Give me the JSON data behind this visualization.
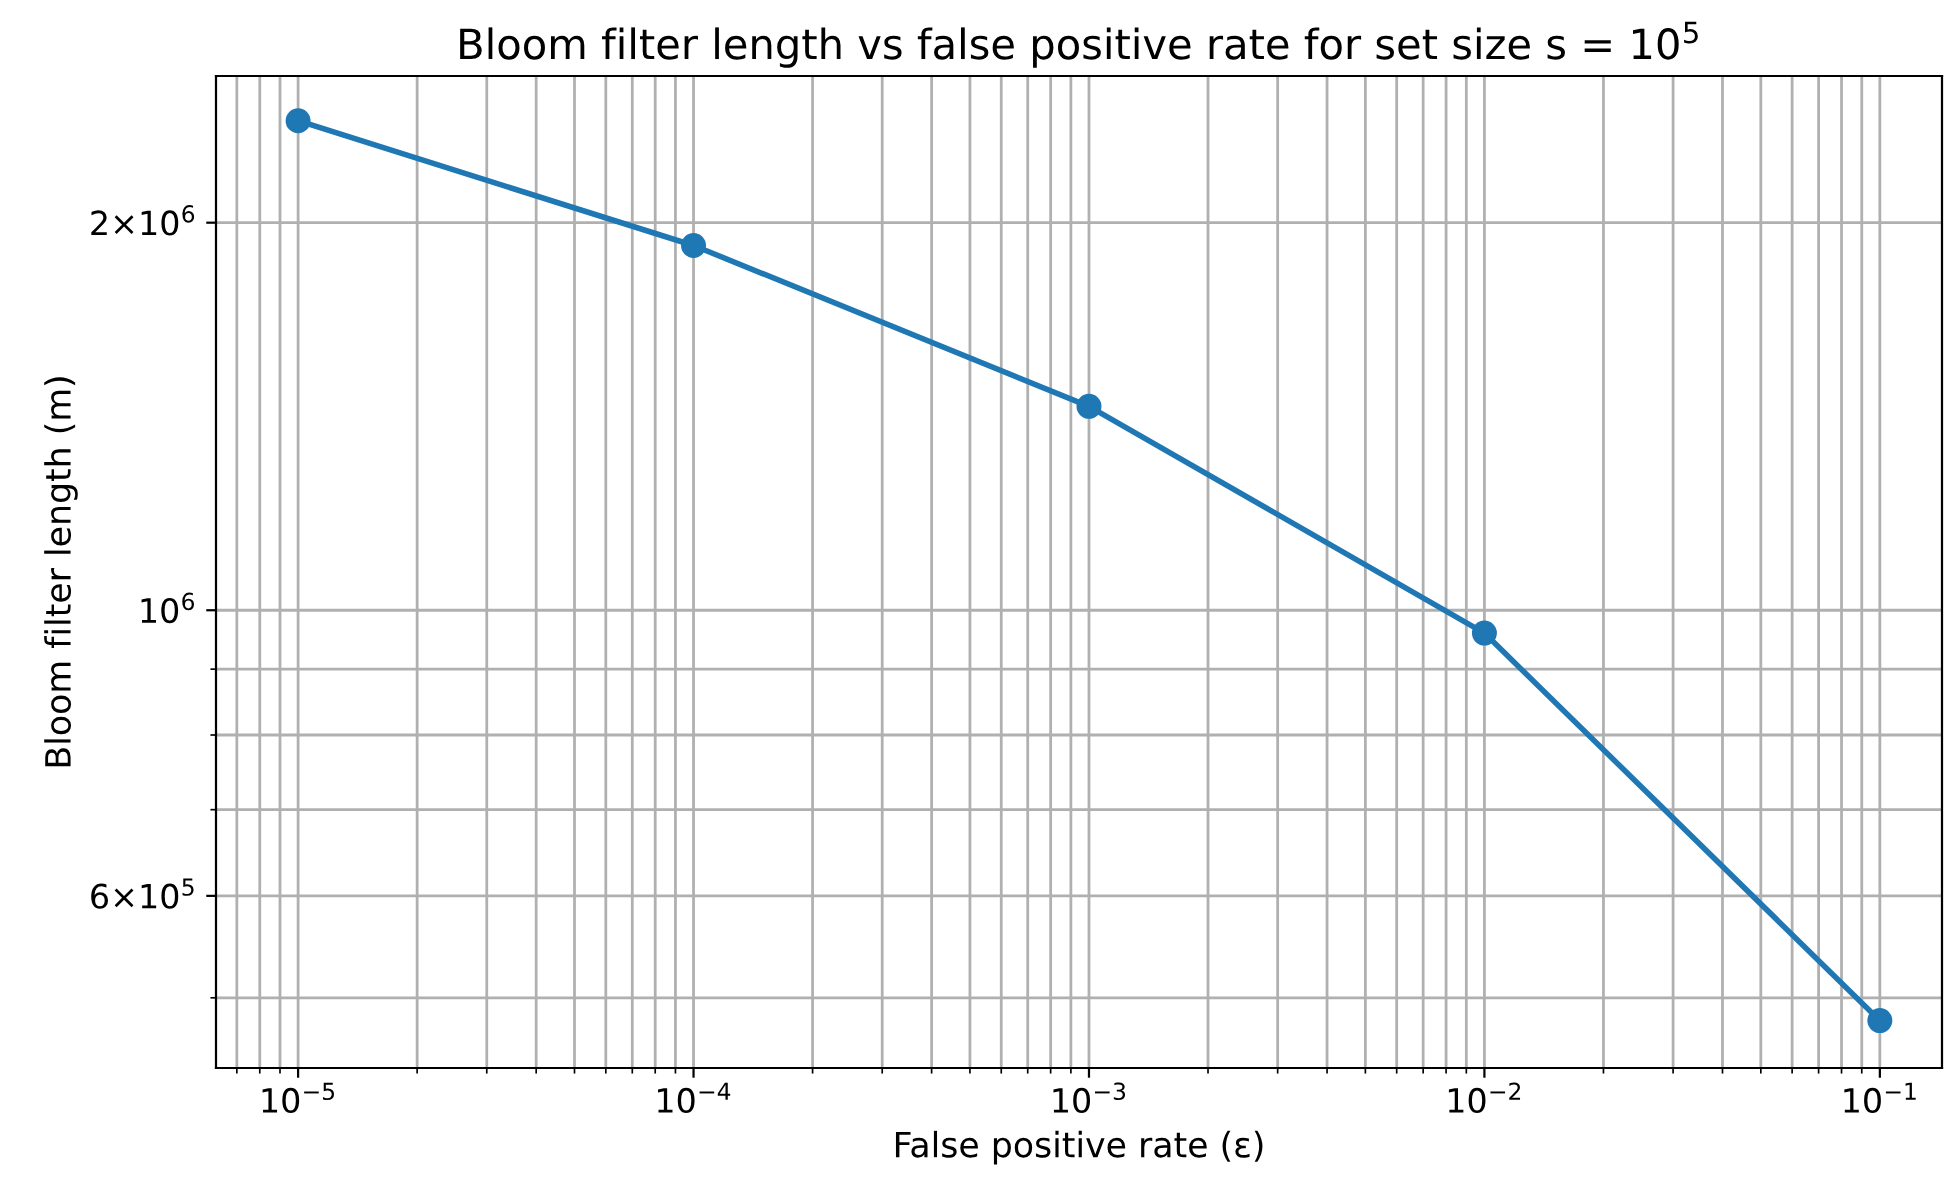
{
  "chart_data": {
    "type": "line",
    "title": "Bloom filter length vs false positive rate for set size s = 10$^{5}$",
    "xlabel": "False positive rate (ε)",
    "ylabel": "Bloom filter length (m)",
    "x": [
      1e-05,
      0.0001,
      0.001,
      0.01,
      0.1
    ],
    "series": [
      {
        "color": "#1f77b4",
        "values": [
          2400000,
          1920000,
          1440000,
          960000,
          480000
        ]
      }
    ],
    "log": "xy",
    "marker": "circle",
    "line_style": "solid",
    "grid": true,
    "xlim": [
      6.2e-06,
      0.1436
    ],
    "ylim": [
      441000,
      2600000
    ],
    "xticks": [
      {
        "value": 1e-05,
        "label": "10$^{−5}$"
      },
      {
        "value": 0.0001,
        "label": "10$^{−4}$"
      },
      {
        "value": 0.001,
        "label": "10$^{−3}$"
      },
      {
        "value": 0.01,
        "label": "10$^{−2}$"
      },
      {
        "value": 0.1,
        "label": "10$^{−1}$"
      },
      {
        "value": 7e-06,
        "label": null
      },
      {
        "value": 8e-06,
        "label": null
      },
      {
        "value": 9e-06,
        "label": null
      },
      {
        "value": 2e-05,
        "label": null
      },
      {
        "value": 3e-05,
        "label": null
      },
      {
        "value": 4e-05,
        "label": null
      },
      {
        "value": 5e-05,
        "label": null
      },
      {
        "value": 6e-05,
        "label": null
      },
      {
        "value": 7e-05,
        "label": null
      },
      {
        "value": 8e-05,
        "label": null
      },
      {
        "value": 9e-05,
        "label": null
      },
      {
        "value": 0.0002,
        "label": null
      },
      {
        "value": 0.0003,
        "label": null
      },
      {
        "value": 0.0004,
        "label": null
      },
      {
        "value": 0.0005,
        "label": null
      },
      {
        "value": 0.0006,
        "label": null
      },
      {
        "value": 0.0007,
        "label": null
      },
      {
        "value": 0.0008,
        "label": null
      },
      {
        "value": 0.0009,
        "label": null
      },
      {
        "value": 0.002,
        "label": null
      },
      {
        "value": 0.003,
        "label": null
      },
      {
        "value": 0.004,
        "label": null
      },
      {
        "value": 0.005,
        "label": null
      },
      {
        "value": 0.006,
        "label": null
      },
      {
        "value": 0.007,
        "label": null
      },
      {
        "value": 0.008,
        "label": null
      },
      {
        "value": 0.009,
        "label": null
      },
      {
        "value": 0.02,
        "label": null
      },
      {
        "value": 0.03,
        "label": null
      },
      {
        "value": 0.04,
        "label": null
      },
      {
        "value": 0.05,
        "label": null
      },
      {
        "value": 0.06,
        "label": null
      },
      {
        "value": 0.07,
        "label": null
      },
      {
        "value": 0.08,
        "label": null
      },
      {
        "value": 0.09,
        "label": null
      }
    ],
    "yticks": [
      {
        "value": 600000,
        "label": "6×10$^{5}$"
      },
      {
        "value": 1000000,
        "label": "10$^{6}$"
      },
      {
        "value": 2000000,
        "label": "2×10$^{6}$"
      },
      {
        "value": 500000,
        "label": null
      },
      {
        "value": 700000,
        "label": null
      },
      {
        "value": 800000,
        "label": null
      },
      {
        "value": 900000,
        "label": null
      }
    ]
  }
}
